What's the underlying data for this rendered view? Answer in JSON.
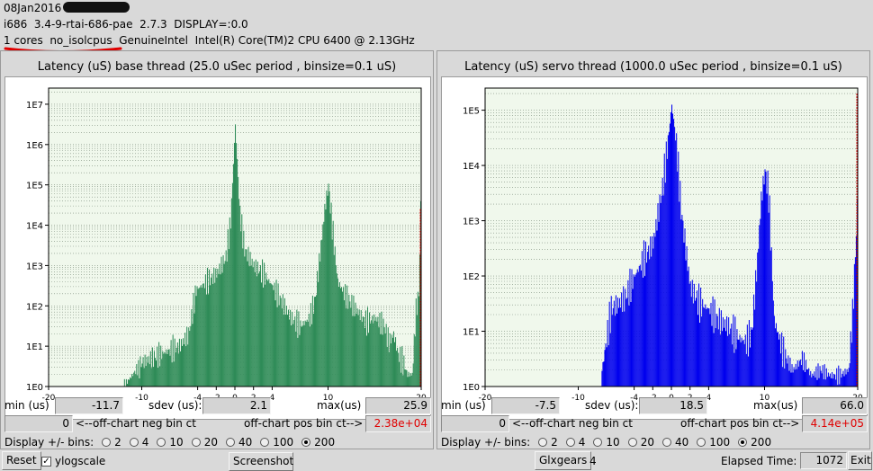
{
  "header": {
    "date": "08Jan2016",
    "system_line": "i686  3.4-9-rtai-686-pae  2.7.3  DISPLAY=:0.0",
    "cpu_line": "1 cores  no_isolcpus  GenuineIntel  Intel(R) Core(TM)2 CPU 6400 @ 2.13GHz"
  },
  "panels": [
    {
      "title": "Latency (uS) base thread (25.0 uSec period , binsize=0.1 uS)",
      "bar_color": "#2e8b57",
      "min_label": "min (us)",
      "min_value": "-11.7",
      "sdev_label": "sdev (us):",
      "sdev_value": "2.1",
      "max_label": "max(us)",
      "max_value": "25.9",
      "neg_value": "0",
      "neg_label": "<--off-chart neg bin ct",
      "pos_label": "off-chart pos bin ct-->",
      "pos_value": "2.38e+04",
      "display_label": "Display +/- bins:",
      "bins": [
        "2",
        "4",
        "10",
        "20",
        "40",
        "100",
        "200"
      ],
      "selected_bin": "200"
    },
    {
      "title": "Latency (uS) servo thread (1000.0 uSec period , binsize=0.1 uS)",
      "bar_color": "#0000ee",
      "min_label": "min (us)",
      "min_value": "-7.5",
      "sdev_label": "sdev (us):",
      "sdev_value": "18.5",
      "max_label": "max(us)",
      "max_value": "66.0",
      "neg_value": "0",
      "neg_label": "<--off-chart neg bin ct",
      "pos_label": "off-chart pos bin ct-->",
      "pos_value": "4.14e+05",
      "display_label": "Display +/- bins:",
      "bins": [
        "2",
        "4",
        "10",
        "20",
        "40",
        "100",
        "200"
      ],
      "selected_bin": "200"
    }
  ],
  "bottom": {
    "reset_label": "Reset",
    "ylogscale_label": "ylogscale",
    "ylogscale_checked": true,
    "screenshot_label": "Screenshot",
    "glxgears_label": "Glxgears",
    "glxgears_count": "4",
    "elapsed_label": "Elapsed Time:",
    "elapsed_value": "1072",
    "exit_label": "Exit"
  },
  "chart_data": [
    {
      "type": "bar",
      "title": "Latency (uS) base thread (25.0 uSec period , binsize=0.1 uS)",
      "xlabel": "",
      "ylabel": "",
      "xlim": [
        -20,
        20
      ],
      "ylim_log10": [
        0,
        7.4
      ],
      "y_scale": "log",
      "y_ticks": [
        "1E0",
        "1E1",
        "1E2",
        "1E3",
        "1E4",
        "1E5",
        "1E6",
        "1E7"
      ],
      "x_ticks": [
        "-20",
        "-10",
        "-4",
        "-2",
        "0",
        "2",
        "4",
        "10",
        "20"
      ],
      "x_tick_values": [
        -20,
        -10,
        -4,
        -2,
        0,
        2,
        4,
        10,
        20
      ],
      "grid": true,
      "profile_x": [
        -12,
        -11,
        -10,
        -8,
        -6,
        -5,
        -4.2,
        -3,
        -2,
        -1,
        -0.5,
        0,
        0.5,
        1,
        2,
        3,
        4,
        5,
        6,
        7,
        8,
        8.6,
        9.2,
        9.6,
        10,
        10.4,
        11,
        12,
        13,
        14,
        15,
        16,
        16.5,
        17,
        17.5,
        18,
        18.5,
        19,
        19.4,
        19.7,
        19.9
      ],
      "profile_log10": [
        0,
        0.3,
        0.6,
        0.8,
        1.0,
        1.3,
        2.4,
        2.6,
        2.8,
        3.2,
        4.1,
        6.5,
        4.3,
        3.4,
        3.0,
        2.8,
        2.5,
        2.1,
        1.7,
        1.5,
        1.7,
        2.2,
        3.5,
        4.4,
        5.0,
        4.0,
        2.6,
        2.2,
        1.9,
        1.6,
        1.7,
        1.5,
        1.1,
        1.3,
        0.8,
        0.6,
        0.3,
        0.3,
        1.9,
        2.3,
        4.4
      ],
      "marker_x": 20,
      "marker_log10": 4.4
    },
    {
      "type": "bar",
      "title": "Latency (uS) servo thread (1000.0 uSec period , binsize=0.1 uS)",
      "xlabel": "",
      "ylabel": "",
      "xlim": [
        -20,
        20
      ],
      "ylim_log10": [
        0,
        5.4
      ],
      "y_scale": "log",
      "y_ticks": [
        "1E0",
        "1E1",
        "1E2",
        "1E3",
        "1E4",
        "1E5"
      ],
      "x_ticks": [
        "-20",
        "-10",
        "-4",
        "-2",
        "0",
        "2",
        "4",
        "10",
        "20"
      ],
      "x_tick_values": [
        -20,
        -10,
        -4,
        -2,
        0,
        2,
        4,
        10,
        20
      ],
      "grid": true,
      "profile_x": [
        -7.5,
        -6.5,
        -5,
        -4,
        -3,
        -2,
        -1,
        -0.5,
        0,
        0.5,
        1,
        2,
        3,
        4,
        5,
        6,
        7,
        8,
        8.6,
        9.2,
        9.6,
        10,
        10.4,
        11,
        12,
        13,
        14,
        15,
        16,
        17,
        18,
        19,
        19.4,
        19.7,
        19.9
      ],
      "profile_log10": [
        0.3,
        1.4,
        1.6,
        2.0,
        2.3,
        2.6,
        3.6,
        4.3,
        5.1,
        4.4,
        3.2,
        1.8,
        1.5,
        1.4,
        1.2,
        1.1,
        0.9,
        0.8,
        1.0,
        2.3,
        3.4,
        3.9,
        3.5,
        1.2,
        0.6,
        0.3,
        0.5,
        0.2,
        0.3,
        0.2,
        0.2,
        0.3,
        1.3,
        2.4,
        3.2
      ],
      "marker_x": 20,
      "marker_log10": 5.3
    }
  ]
}
